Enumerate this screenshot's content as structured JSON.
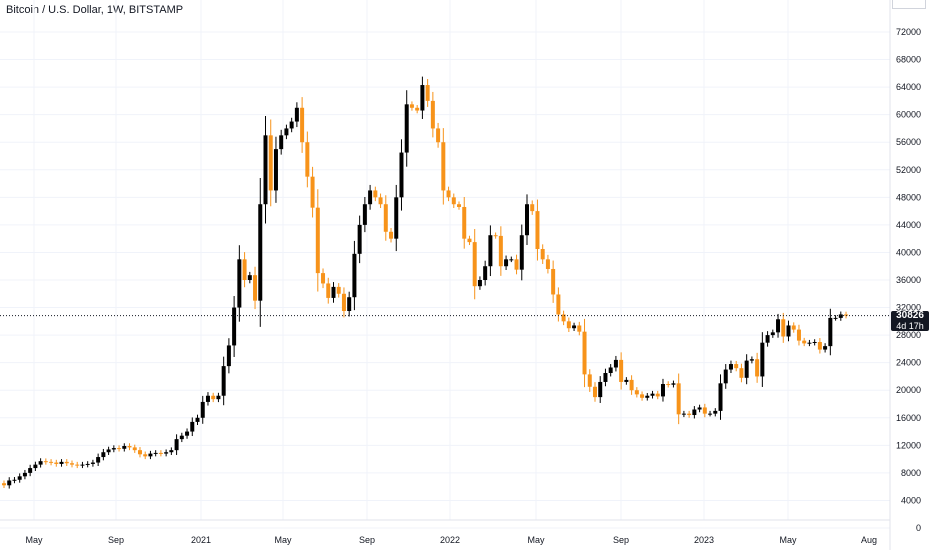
{
  "header": {
    "title": "Bitcoin / U.S. Dollar, 1W, BITSTAMP"
  },
  "price_tag": {
    "value": "30826",
    "countdown": "4d 17h"
  },
  "colors": {
    "up": "#000000",
    "down": "#f7931a",
    "grid": "#f0f3fa",
    "last_line": "#131722"
  },
  "chart_data": {
    "type": "candlestick",
    "title": "Bitcoin / U.S. Dollar, 1W, BITSTAMP",
    "ylim": [
      0,
      75000
    ],
    "yticks": [
      0,
      4000,
      8000,
      12000,
      16000,
      20000,
      24000,
      28000,
      32000,
      36000,
      40000,
      44000,
      48000,
      52000,
      56000,
      60000,
      64000,
      68000,
      72000
    ],
    "xtick_labels": [
      "May",
      "Sep",
      "2021",
      "May",
      "Sep",
      "2022",
      "May",
      "Sep",
      "2023",
      "May",
      "Aug"
    ],
    "last_price": 30826,
    "close": [
      6200,
      6900,
      7000,
      7500,
      8000,
      8700,
      9200,
      9700,
      9600,
      9500,
      9300,
      9600,
      9400,
      9200,
      9100,
      9200,
      9300,
      9500,
      10300,
      11000,
      11400,
      11600,
      11500,
      11900,
      11700,
      11300,
      10700,
      10400,
      10800,
      10900,
      10800,
      11000,
      11300,
      12900,
      13400,
      14000,
      15400,
      16000,
      18300,
      19200,
      18700,
      19200,
      23500,
      26500,
      32000,
      39000,
      36000,
      36700,
      33000,
      47000,
      57000,
      49000,
      55000,
      57000,
      58000,
      59000,
      61000,
      56000,
      51000,
      46500,
      37000,
      35500,
      33400,
      35000,
      34000,
      31500,
      33500,
      39800,
      44000,
      47000,
      49000,
      48000,
      47000,
      43000,
      42000,
      48000,
      54500,
      61500,
      61000,
      60600,
      64300,
      62000,
      58000,
      56000,
      49000,
      48000,
      47000,
      46600,
      42000,
      41500,
      35100,
      36000,
      38000,
      42500,
      42400,
      38000,
      39000,
      39000,
      37500,
      42500,
      47000,
      46000,
      40500,
      39000,
      37600,
      33900,
      31000,
      30000,
      29000,
      29400,
      28500,
      22300,
      20500,
      19000,
      21200,
      22500,
      23300,
      24400,
      21200,
      21500,
      20000,
      19400,
      18900,
      19200,
      19500,
      19100,
      20900,
      20800,
      21000,
      16500,
      16600,
      16400,
      17200,
      17500,
      16600,
      16600,
      17000,
      21000,
      23000,
      23800,
      23200,
      21800,
      24300,
      24500,
      22000,
      26900,
      28000,
      28400,
      30300,
      27800,
      29400,
      28800,
      27200,
      26800,
      26900,
      27000,
      25900,
      26400,
      30500,
      30500,
      31000,
      30826
    ]
  }
}
